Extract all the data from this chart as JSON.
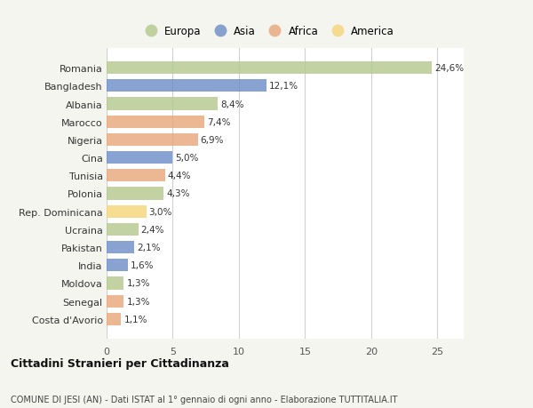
{
  "countries": [
    "Romania",
    "Bangladesh",
    "Albania",
    "Marocco",
    "Nigeria",
    "Cina",
    "Tunisia",
    "Polonia",
    "Rep. Dominicana",
    "Ucraina",
    "Pakistan",
    "India",
    "Moldova",
    "Senegal",
    "Costa d'Avorio"
  ],
  "values": [
    24.6,
    12.1,
    8.4,
    7.4,
    6.9,
    5.0,
    4.4,
    4.3,
    3.0,
    2.4,
    2.1,
    1.6,
    1.3,
    1.3,
    1.1
  ],
  "labels": [
    "24,6%",
    "12,1%",
    "8,4%",
    "7,4%",
    "6,9%",
    "5,0%",
    "4,4%",
    "4,3%",
    "3,0%",
    "2,4%",
    "2,1%",
    "1,6%",
    "1,3%",
    "1,3%",
    "1,1%"
  ],
  "colors": [
    "#b5c98e",
    "#6e8fc7",
    "#b5c98e",
    "#e8a87c",
    "#e8a87c",
    "#6e8fc7",
    "#e8a87c",
    "#b5c98e",
    "#f5d67a",
    "#b5c98e",
    "#6e8fc7",
    "#6e8fc7",
    "#b5c98e",
    "#e8a87c",
    "#e8a87c"
  ],
  "legend_labels": [
    "Europa",
    "Asia",
    "Africa",
    "America"
  ],
  "legend_colors": [
    "#b5c98e",
    "#6e8fc7",
    "#e8a87c",
    "#f5d67a"
  ],
  "title": "Cittadini Stranieri per Cittadinanza",
  "subtitle": "COMUNE DI JESI (AN) - Dati ISTAT al 1° gennaio di ogni anno - Elaborazione TUTTITALIA.IT",
  "xlim": [
    0,
    27
  ],
  "xticks": [
    0,
    5,
    10,
    15,
    20,
    25
  ],
  "bg_color": "#f5f5f0",
  "bar_bg_color": "#ffffff",
  "grid_color": "#d0d0d0"
}
